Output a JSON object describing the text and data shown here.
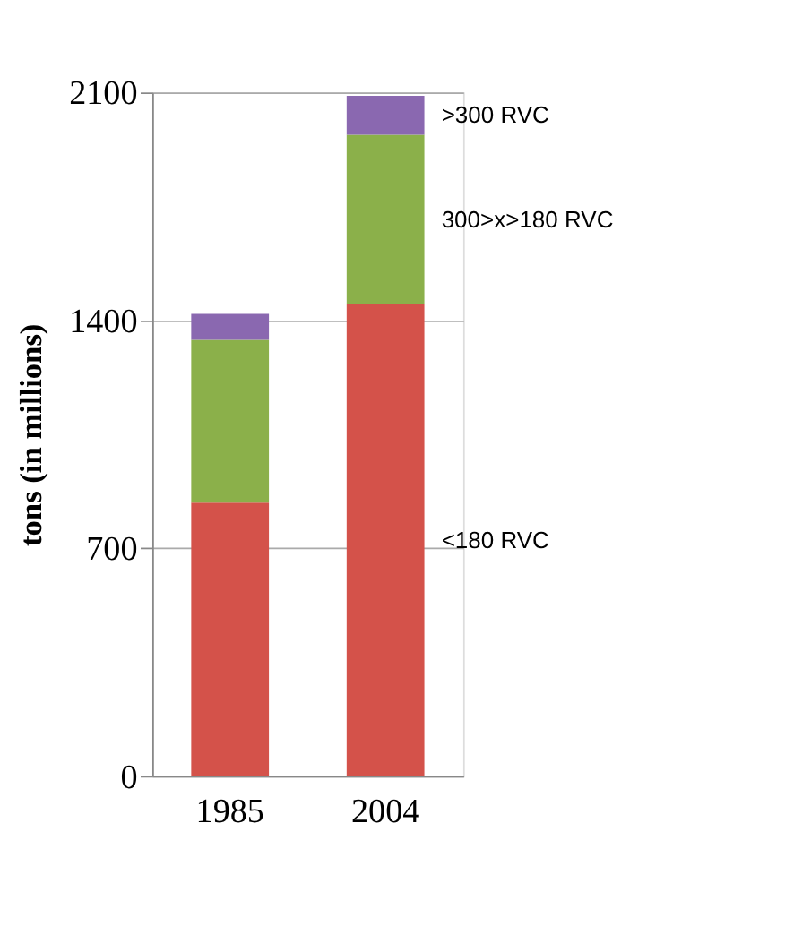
{
  "chart_data": {
    "type": "bar",
    "stacked": true,
    "ylabel": "tons (in millions)",
    "categories": [
      "1985",
      "2004"
    ],
    "series": [
      {
        "name": "<180 RVC",
        "color": "#d4524a",
        "values": [
          840,
          1450
        ]
      },
      {
        "name": "300>x>180 RVC",
        "color": "#8bb04a",
        "values": [
          500,
          520
        ]
      },
      {
        "name": ">300 RVC",
        "color": "#8a68b0",
        "values": [
          80,
          120
        ]
      }
    ],
    "ylim": [
      0,
      2100
    ],
    "yticks": [
      0,
      700,
      1400,
      2100
    ],
    "grid": "y",
    "legend": false
  }
}
